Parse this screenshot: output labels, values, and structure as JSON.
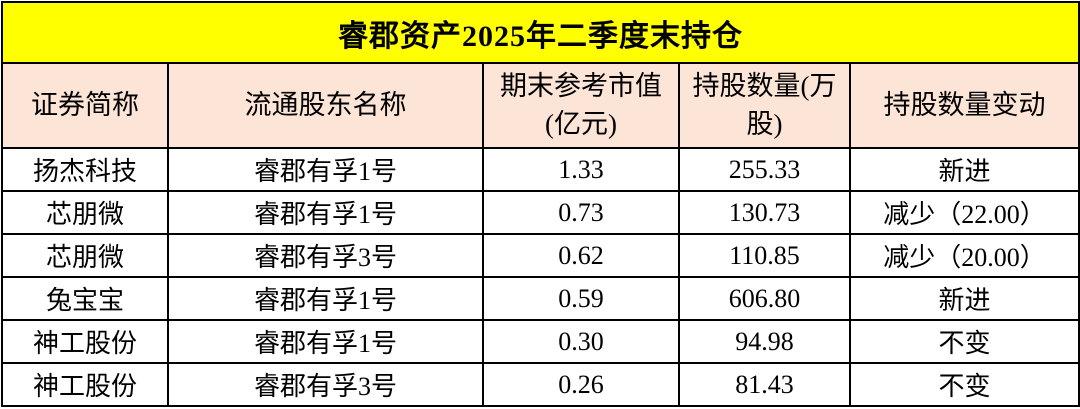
{
  "title": "睿郡资产2025年二季度末持仓",
  "colors": {
    "title_bg": "#FFFF00",
    "header_bg": "#FCE4D6",
    "row_bg": "#FFFFFF",
    "border": "#000000",
    "text": "#000000"
  },
  "chart_data": {
    "type": "table",
    "title": "睿郡资产2025年二季度末持仓",
    "columns": [
      "证券简称",
      "流通股东名称",
      "期末参考市值(亿元)",
      "持股数量(万股)",
      "持股数量变动"
    ],
    "rows": [
      [
        "扬杰科技",
        "睿郡有孚1号",
        "1.33",
        "255.33",
        "新进"
      ],
      [
        "芯朋微",
        "睿郡有孚1号",
        "0.73",
        "130.73",
        "减少（22.00）"
      ],
      [
        "芯朋微",
        "睿郡有孚3号",
        "0.62",
        "110.85",
        "减少（20.00）"
      ],
      [
        "兔宝宝",
        "睿郡有孚1号",
        "0.59",
        "606.80",
        "新进"
      ],
      [
        "神工股份",
        "睿郡有孚1号",
        "0.30",
        "94.98",
        "不变"
      ],
      [
        "神工股份",
        "睿郡有孚3号",
        "0.26",
        "81.43",
        "不变"
      ]
    ]
  }
}
